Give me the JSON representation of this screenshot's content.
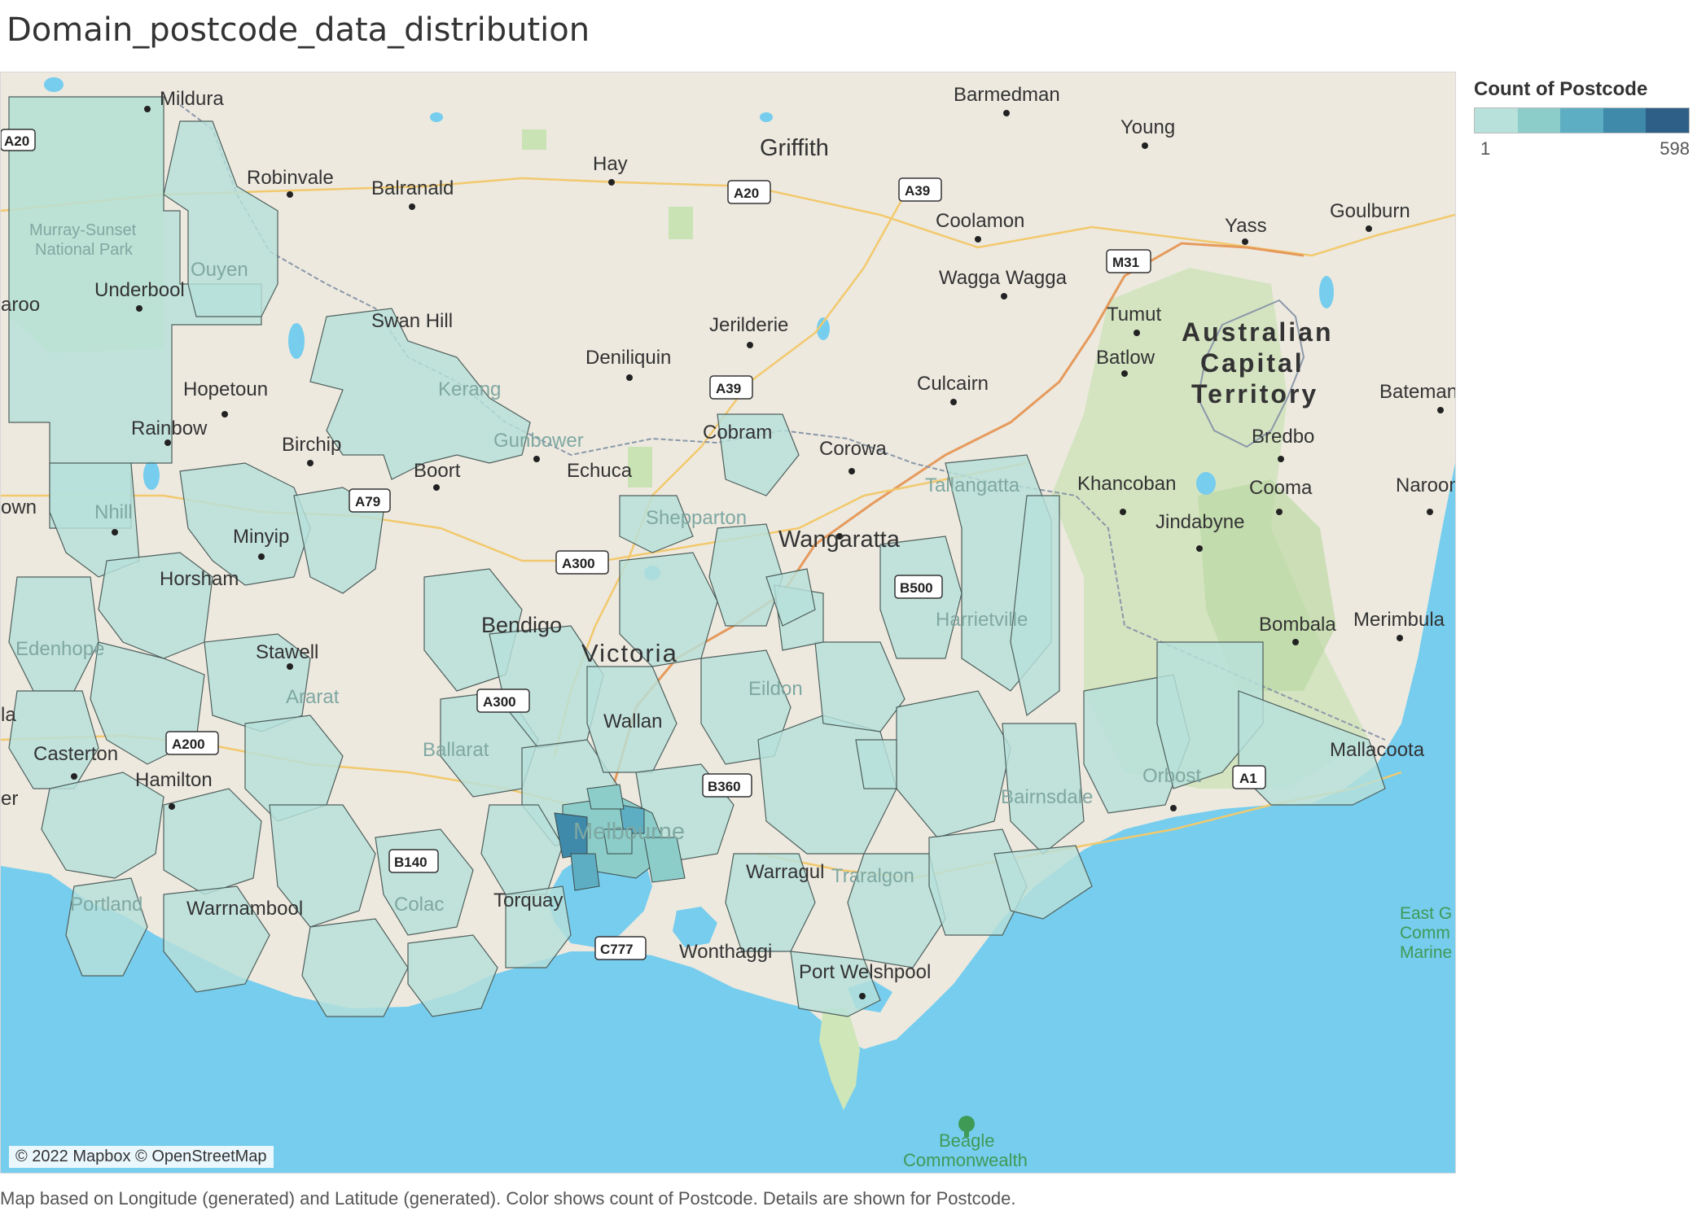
{
  "title": "Domain_postcode_data_distribution",
  "legend": {
    "title": "Count of Postcode",
    "min": "1",
    "max": "598",
    "colors": [
      "#b7e1da",
      "#8ccdca",
      "#5eaec3",
      "#3f89ab",
      "#2d5f87"
    ]
  },
  "caption": "Map based on Longitude (generated) and Latitude (generated).  Color shows count of Postcode.  Details are shown for Postcode.",
  "attribution": "© 2022 Mapbox © OpenStreetMap",
  "colors": {
    "land": "#ede9df",
    "water": "#76cdee",
    "park": "#c9e3b4",
    "postcode_fill": "#b7e1da",
    "postcode_stroke": "#4f5f5c",
    "dense_fill": "#6ab4c4"
  },
  "map_labels": {
    "mildura": "Mildura",
    "barmedman": "Barmedman",
    "young": "Young",
    "griffith": "Griffith",
    "hay": "Hay",
    "robinvale": "Robinvale",
    "balranald": "Balranald",
    "goulburn": "Goulburn",
    "yass": "Yass",
    "coolamon": "Coolamon",
    "murray_sunset": "Murray-Sunset National Park",
    "ouyen": "Ouyen",
    "wagga": "Wagga Wagga",
    "underbool": "Underbool",
    "swan_hill": "Swan Hill",
    "jerilderie": "Jerilderie",
    "tumut": "Tumut",
    "act": "Australian Capital Territory",
    "deniliquin": "Deniliquin",
    "batlow": "Batlow",
    "kerang": "Kerang",
    "hopetoun": "Hopetoun",
    "culcairn": "Culcairn",
    "bateman": "Bateman",
    "rainbow": "Rainbow",
    "gunbower": "Gunbower",
    "cobram": "Cobram",
    "birchip": "Birchip",
    "corowa": "Corowa",
    "bredbo": "Bredbo",
    "boort": "Boort",
    "echuca": "Echuca",
    "tallangatta": "Tallangatta",
    "khancoban": "Khancoban",
    "cooma": "Cooma",
    "narooma": "Naroom",
    "nhill": "Nhill",
    "shepparton": "Shepparton",
    "minyip": "Minyip",
    "jindabyne": "Jindabyne",
    "wangaratta": "Wangaratta",
    "horsham": "Horsham",
    "harrietville": "Harrietville",
    "bendigo": "Bendigo",
    "bombala": "Bombala",
    "merimbula": "Merimbula",
    "edenhope": "Edenhope",
    "stawell": "Stawell",
    "victoria": "Victoria",
    "ararat": "Ararat",
    "eildon": "Eildon",
    "wallan": "Wallan",
    "casterton": "Casterton",
    "ballarat": "Ballarat",
    "mallacoota": "Mallacoota",
    "hamilton": "Hamilton",
    "orbost": "Orbost",
    "bairnsdale": "Bairnsdale",
    "melbourne": "Melbourne",
    "warragul": "Warragul",
    "traralgon": "Traralgon",
    "colac": "Colac",
    "portland": "Portland",
    "warrnambool": "Warrnambool",
    "torquay": "Torquay",
    "east_gippsland": "East G Comm Marine",
    "wonthaggi": "Wonthaggi",
    "port_welshpool": "Port Welshpool",
    "beagle": "Beagle Commonwealth",
    "aroo": "aroo",
    "own": "own",
    "la": "la",
    "er": "er"
  },
  "road_shields": {
    "a20_left": "A20",
    "a20": "A20",
    "a39": "A39",
    "m31": "M31",
    "a39b": "A39",
    "a79": "A79",
    "a300": "A300",
    "b500": "B500",
    "a300b": "A300",
    "a200": "A200",
    "b360": "B360",
    "a1": "A1",
    "b140": "B140",
    "c777": "C777"
  }
}
